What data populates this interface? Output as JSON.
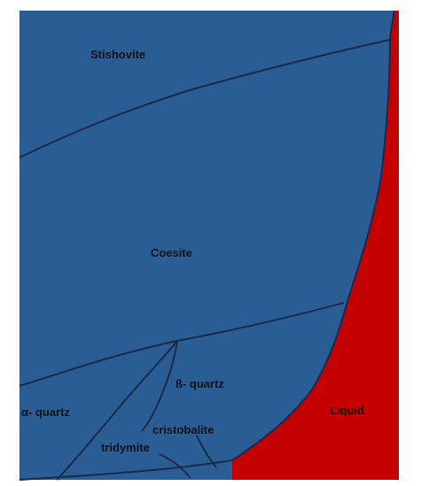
{
  "colors": {
    "solid_fill": "#2b5d95",
    "liquid_fill": "#c40000",
    "boundary": "#1a2a4a",
    "label": "#111111",
    "background": "#ffffff"
  },
  "regions": {
    "stishovite": "Stishovite",
    "coesite": "Coesite",
    "beta_quartz": "ß- quartz",
    "alpha_quartz": "α- quartz",
    "cristobalite": "cristobalite",
    "tridymite": "tridymite",
    "liquid": "Liquid"
  }
}
